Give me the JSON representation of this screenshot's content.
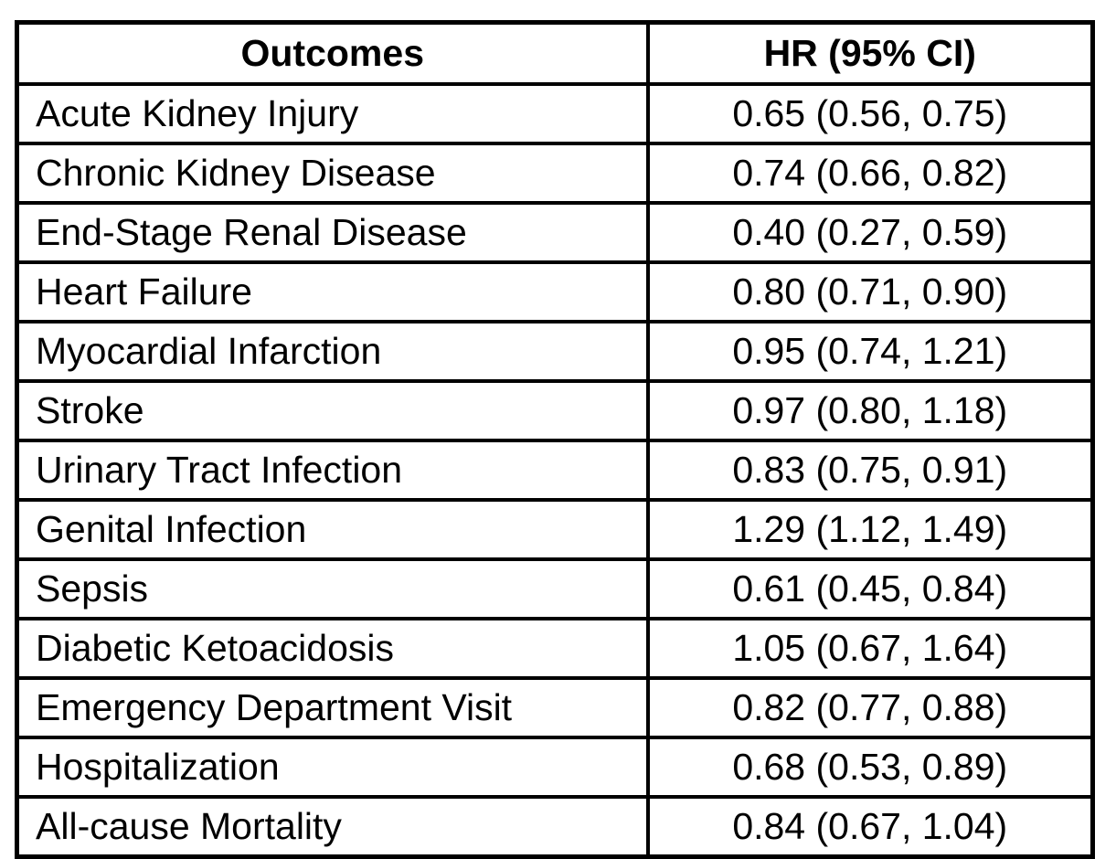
{
  "page": {
    "background": "#ffffff",
    "border_color": "#000000",
    "text_color": "#000000"
  },
  "chart_data": {
    "type": "table",
    "columns": [
      "Outcomes",
      "HR (95% CI)"
    ],
    "rows": [
      [
        "Acute Kidney Injury",
        "0.65 (0.56, 0.75)"
      ],
      [
        "Chronic Kidney Disease",
        "0.74 (0.66, 0.82)"
      ],
      [
        "End-Stage Renal Disease",
        "0.40 (0.27, 0.59)"
      ],
      [
        "Heart Failure",
        "0.80 (0.71, 0.90)"
      ],
      [
        "Myocardial Infarction",
        "0.95 (0.74, 1.21)"
      ],
      [
        "Stroke",
        "0.97 (0.80, 1.18)"
      ],
      [
        "Urinary Tract Infection",
        "0.83 (0.75, 0.91)"
      ],
      [
        "Genital Infection",
        "1.29 (1.12, 1.49)"
      ],
      [
        "Sepsis",
        "0.61 (0.45, 0.84)"
      ],
      [
        "Diabetic Ketoacidosis",
        "1.05 (0.67, 1.64)"
      ],
      [
        "Emergency Department Visit",
        "0.82 (0.77, 0.88)"
      ],
      [
        "Hospitalization",
        "0.68 (0.53, 0.89)"
      ],
      [
        "All-cause Mortality",
        "0.84 (0.67, 1.04)"
      ]
    ]
  }
}
